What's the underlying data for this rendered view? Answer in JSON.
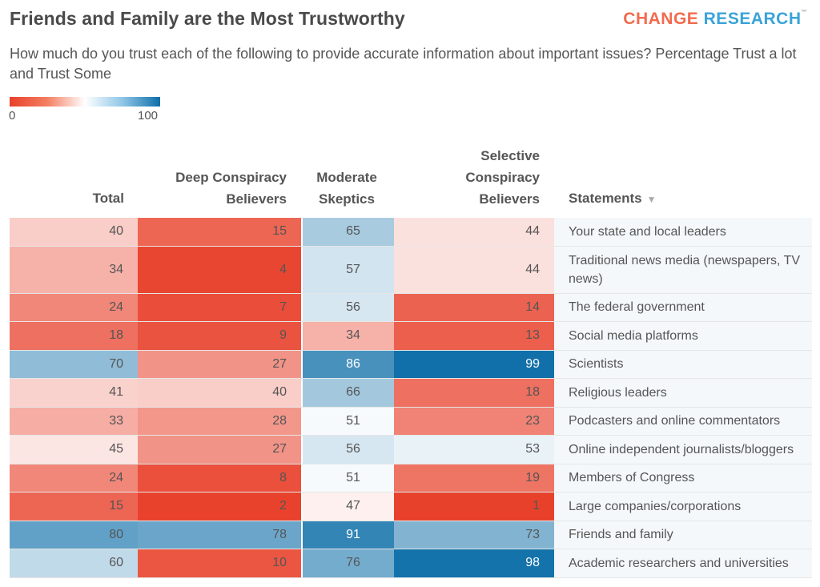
{
  "header": {
    "title": "Friends and Family are the Most Trustworthy",
    "brand_part1": "CHANGE",
    "brand_part2": "RESEARCH",
    "brand_tm": "™",
    "subtitle": "How much do you trust each of the following to provide accurate information about important issues? Percentage Trust a lot and Trust Some"
  },
  "legend": {
    "min_label": "0",
    "max_label": "100"
  },
  "columns": {
    "total": "Total",
    "deep_line1": "Deep Conspiracy",
    "deep_line2": "Believers",
    "moderate_line1": "Moderate",
    "moderate_line2": "Skeptics",
    "selective_line1": "Selective",
    "selective_line2": "Conspiracy",
    "selective_line3": "Believers",
    "statements": "Statements",
    "sort_icon": "▼"
  },
  "chart_data": {
    "type": "heatmap",
    "title": "Friends and Family are the Most Trustworthy",
    "subtitle": "How much do you trust each of the following to provide accurate information about important issues? Percentage Trust a lot and Trust Some",
    "color_scale": {
      "min": 0,
      "max": 100,
      "low_color": "#e8402a",
      "mid_color": "#ffffff",
      "high_color": "#0d6ea8"
    },
    "columns": [
      "Total",
      "Deep Conspiracy Believers",
      "Moderate Skeptics",
      "Selective Conspiracy Believers"
    ],
    "rows": [
      {
        "statement": "Your state and local leaders",
        "values": [
          40,
          15,
          65,
          44
        ]
      },
      {
        "statement": "Traditional news media (newspapers, TV news)",
        "values": [
          34,
          4,
          57,
          44
        ]
      },
      {
        "statement": "The federal government",
        "values": [
          24,
          7,
          56,
          14
        ]
      },
      {
        "statement": "Social media platforms",
        "values": [
          18,
          9,
          34,
          13
        ]
      },
      {
        "statement": "Scientists",
        "values": [
          70,
          27,
          86,
          99
        ]
      },
      {
        "statement": "Religious leaders",
        "values": [
          41,
          40,
          66,
          18
        ]
      },
      {
        "statement": "Podcasters and online commentators",
        "values": [
          33,
          28,
          51,
          23
        ]
      },
      {
        "statement": "Online independent journalists/bloggers",
        "values": [
          45,
          27,
          56,
          53
        ]
      },
      {
        "statement": "Members of Congress",
        "values": [
          24,
          8,
          51,
          19
        ]
      },
      {
        "statement": "Large companies/corporations",
        "values": [
          15,
          2,
          47,
          1
        ]
      },
      {
        "statement": "Friends and family",
        "values": [
          80,
          78,
          91,
          73
        ]
      },
      {
        "statement": "Academic researchers and universities",
        "values": [
          60,
          10,
          76,
          98
        ]
      }
    ]
  }
}
